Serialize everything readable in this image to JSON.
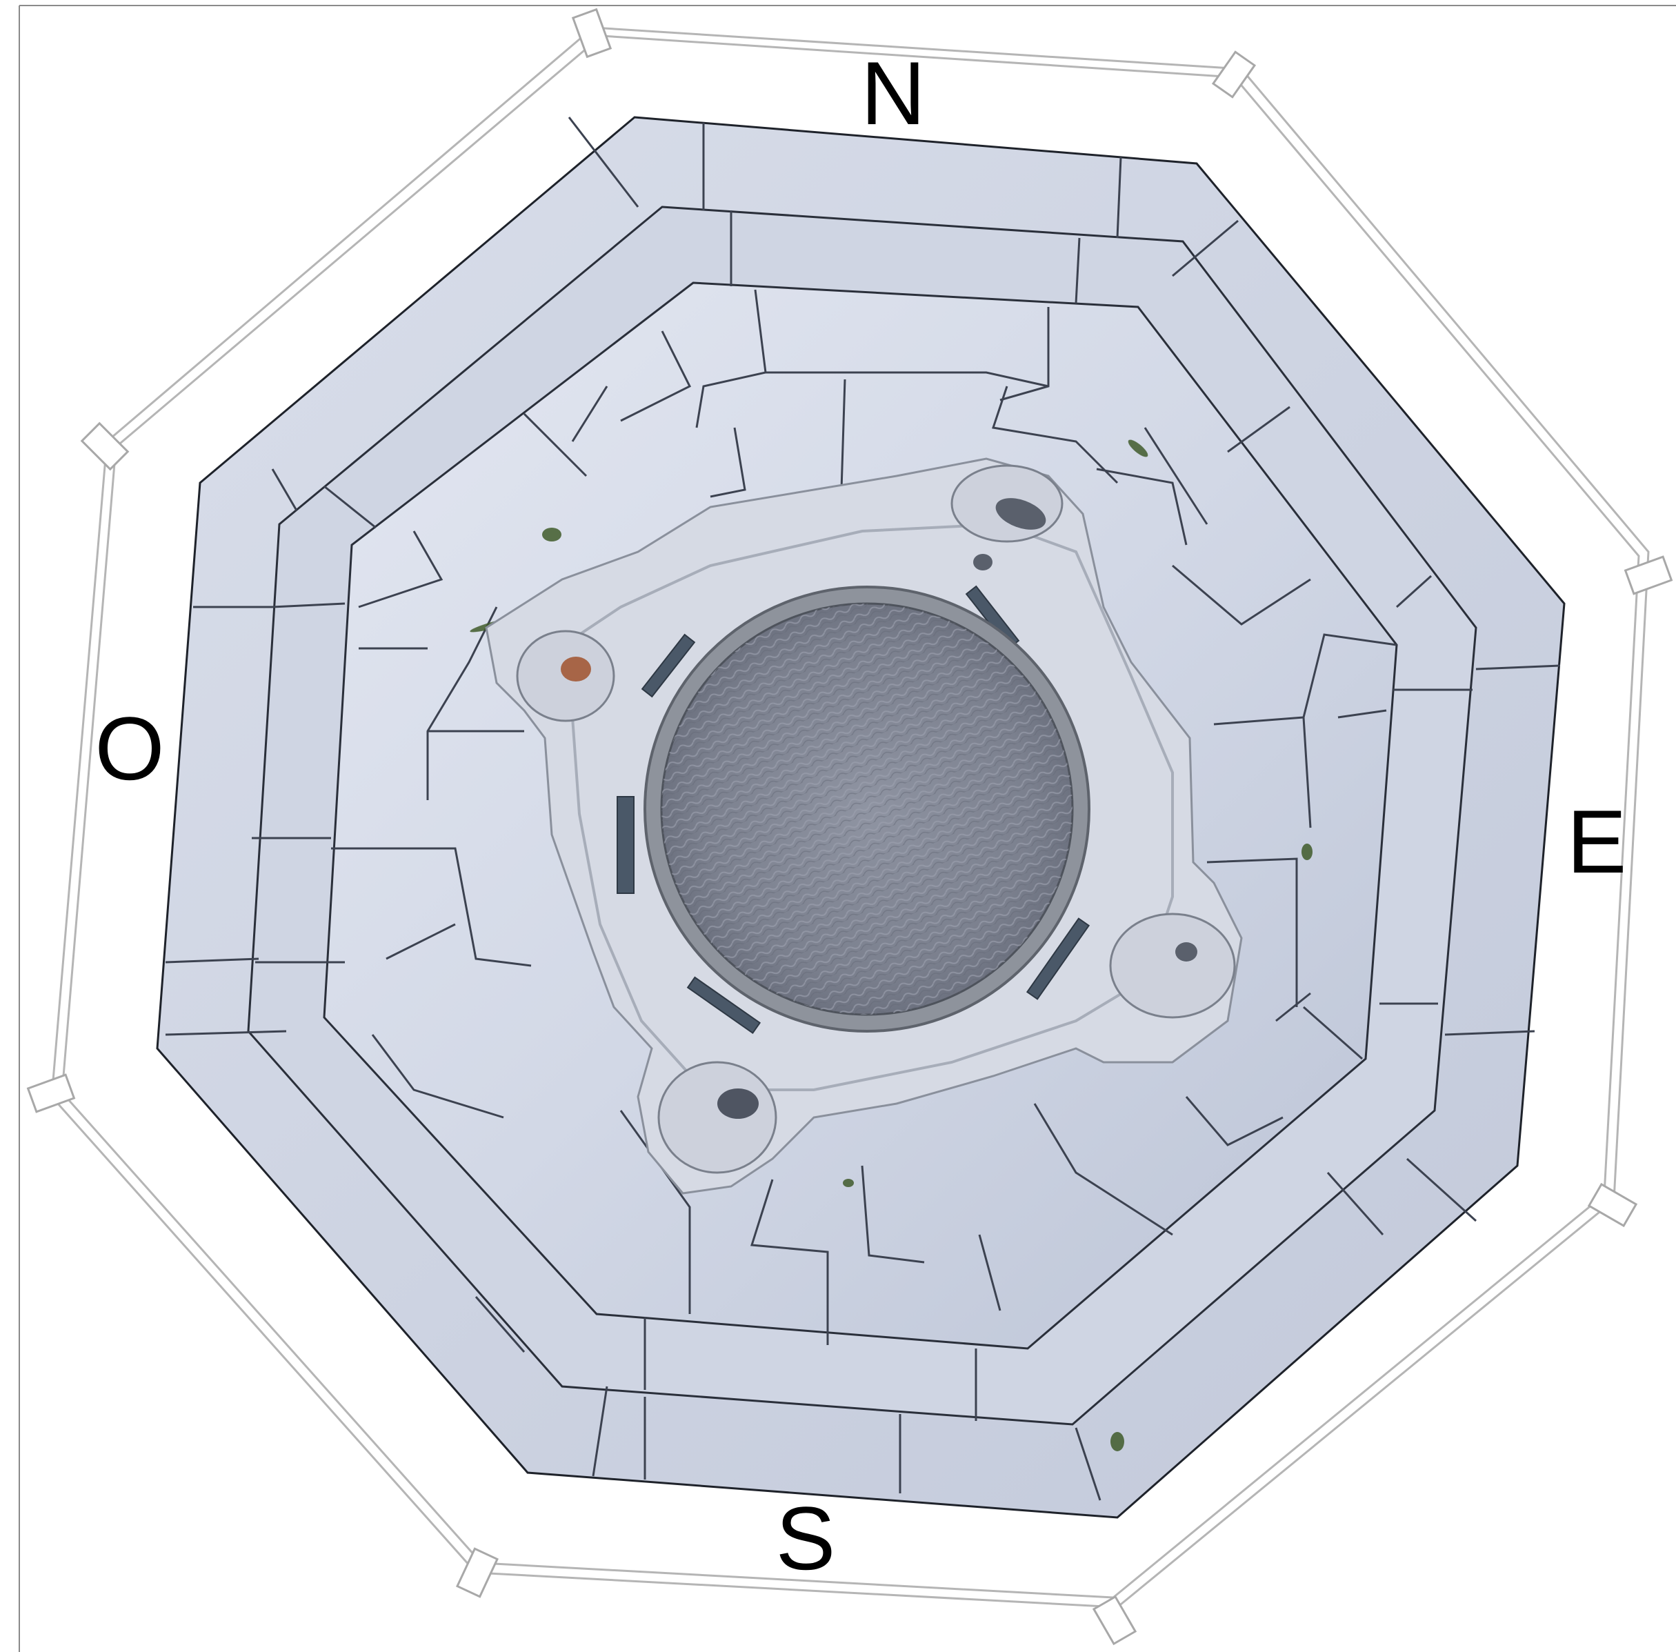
{
  "figure": {
    "description_labels": {
      "north": "N",
      "east": "E",
      "south": "S",
      "west": "O"
    }
  },
  "colors": {
    "background": "#ffffff",
    "frame_line": "#9a9a9a",
    "outline_guide": "#b8b8b8",
    "stone_light": "#dde2ee",
    "stone_mid": "#c9cfde",
    "stone_shadow": "#aab2c6",
    "joint": "#3c4250",
    "basin_rim": "#8e939c",
    "basin_water": "#7d8290",
    "metal_strip": "#4a5868",
    "moss": "#3f5a2a",
    "rust": "#a0522d"
  }
}
